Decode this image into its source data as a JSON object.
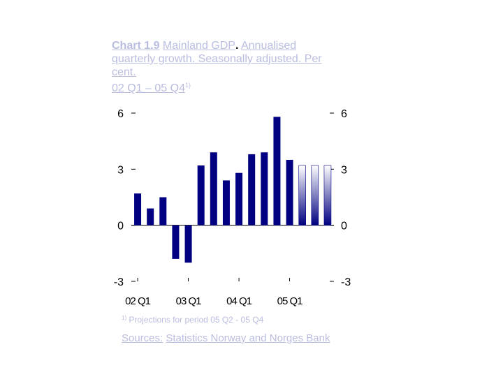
{
  "title": {
    "chart_number": "Chart 1.9",
    "name": "Mainland GDP",
    "separator": ".",
    "line1_rest": "Annualised",
    "line2": "quarterly growth. Seasonally adjusted. Per",
    "line3": "cent.",
    "period": "02 Q1 – 05 Q4",
    "period_sup": "1)"
  },
  "footnote": {
    "marker": "1)",
    "text": "Projections for period 05 Q2 - 05 Q4"
  },
  "sources": {
    "label": "Sources:",
    "text": "Statistics Norway and Norges Bank"
  },
  "colors": {
    "bar": "#000080",
    "projection_top": "#ffffff",
    "projection_bottom": "#000080",
    "text_light": "#b9bde0"
  },
  "chart_data": {
    "type": "bar",
    "categories": [
      "02 Q1",
      "02 Q2",
      "02 Q3",
      "02 Q4",
      "03 Q1",
      "03 Q2",
      "03 Q3",
      "03 Q4",
      "04 Q1",
      "04 Q2",
      "04 Q3",
      "04 Q4",
      "05 Q1",
      "05 Q2",
      "05 Q3",
      "05 Q4"
    ],
    "values": [
      1.7,
      0.9,
      1.5,
      -1.8,
      -2.0,
      3.2,
      3.9,
      2.4,
      2.8,
      3.8,
      3.9,
      5.8,
      3.5,
      3.2,
      3.2,
      3.2
    ],
    "projection_from_index": 13,
    "ylim": [
      -3,
      6
    ],
    "yticks_left": [
      "6",
      "3",
      "0",
      "-3"
    ],
    "yticks_right": [
      "6",
      "3",
      "0",
      "-3"
    ],
    "ytick_values": [
      6,
      3,
      0,
      -3
    ],
    "xtick_labels": [
      "02 Q1",
      "03 Q1",
      "04 Q1",
      "05 Q1"
    ],
    "xtick_positions": [
      0,
      4,
      8,
      12
    ],
    "grid": false
  }
}
